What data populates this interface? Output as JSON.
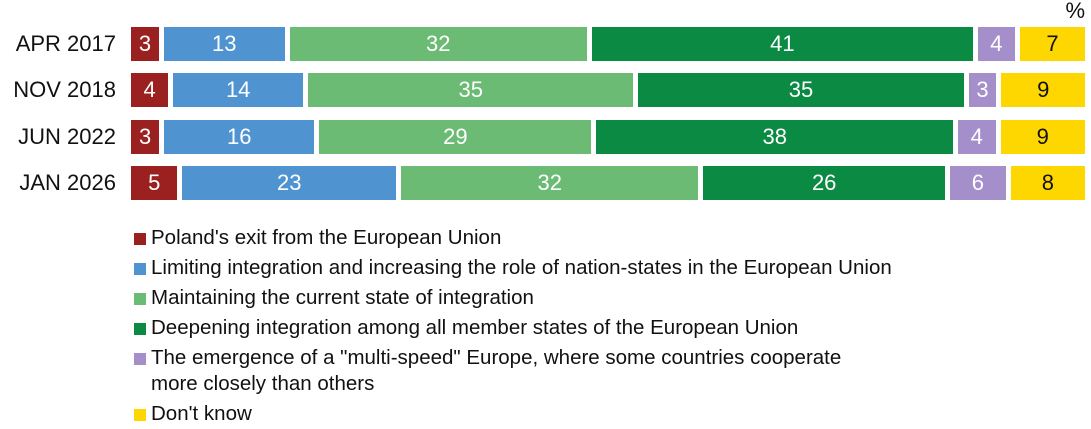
{
  "chart_data": {
    "type": "bar",
    "orientation": "horizontal",
    "stacked": true,
    "unit_label": "%",
    "categories": [
      "APR 2017",
      "NOV 2018",
      "JUN 2022",
      "JAN 2026"
    ],
    "series": [
      {
        "name": "Poland's exit from the European Union",
        "color": "#9B2120",
        "values": [
          3,
          4,
          3,
          5
        ]
      },
      {
        "name": "Limiting integration and increasing the role of nation-states in the European Union",
        "color": "#4F94D0",
        "values": [
          13,
          14,
          16,
          23
        ]
      },
      {
        "name": "Maintaining the current state of integration",
        "color": "#6BBB74",
        "values": [
          32,
          35,
          29,
          32
        ]
      },
      {
        "name": "Deepening integration among all member states of the European Union",
        "color": "#0A8A43",
        "values": [
          41,
          35,
          38,
          26
        ]
      },
      {
        "name": "The emergence of a \"multi-speed\" Europe, where some countries cooperate more closely than others",
        "color": "#A58FCA",
        "values": [
          4,
          3,
          4,
          6
        ]
      },
      {
        "name": "Don't know",
        "color": "#FFD700",
        "values": [
          7,
          9,
          9,
          8
        ]
      }
    ],
    "title": "",
    "xlabel": "",
    "ylabel": "",
    "xlim": [
      0,
      100
    ],
    "grid": false,
    "legend_position": "bottom"
  },
  "unit": "%",
  "rows": [
    {
      "label": "APR 2017",
      "segments": [
        "3",
        "13",
        "32",
        "41",
        "4",
        "7"
      ]
    },
    {
      "label": "NOV 2018",
      "segments": [
        "4",
        "14",
        "35",
        "35",
        "3",
        "9"
      ]
    },
    {
      "label": "JUN 2022",
      "segments": [
        "3",
        "16",
        "29",
        "38",
        "4",
        "9"
      ]
    },
    {
      "label": "JAN 2026",
      "segments": [
        "5",
        "23",
        "32",
        "26",
        "6",
        "8"
      ]
    }
  ],
  "legend": [
    {
      "label": "Poland's exit from the European Union",
      "color": "#9B2120"
    },
    {
      "label": "Limiting integration and increasing the role of nation-states in the European Union",
      "color": "#4F94D0"
    },
    {
      "label": "Maintaining the current state of integration",
      "color": "#6BBB74"
    },
    {
      "label": "Deepening integration among all member states of the European Union",
      "color": "#0A8A43"
    },
    {
      "label": "The emergence of a \"multi-speed\" Europe, where some countries cooperate\nmore closely than others",
      "color": "#A58FCA"
    },
    {
      "label": "Don't know",
      "color": "#FFD700"
    }
  ]
}
